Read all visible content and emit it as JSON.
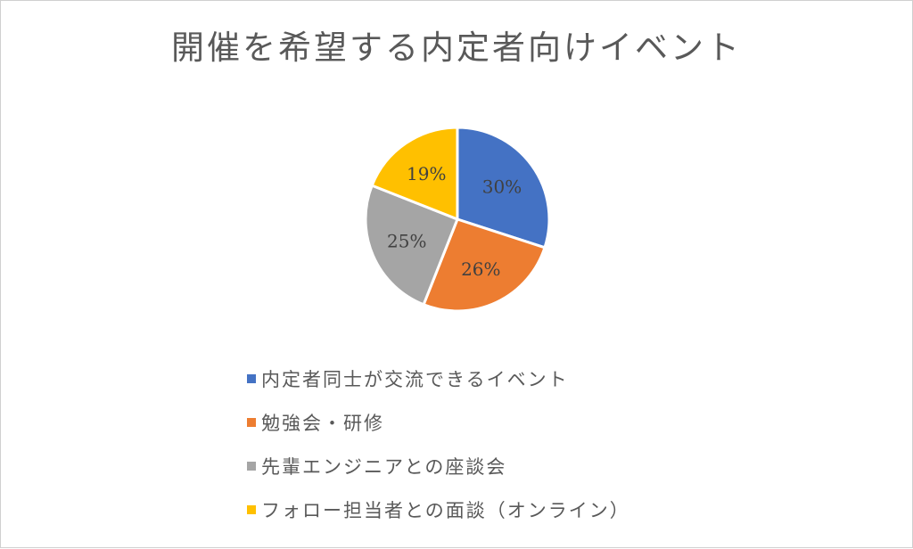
{
  "chart_data": {
    "type": "pie",
    "title": "開催を希望する内定者向けイベント",
    "categories": [
      "内定者同士が交流できるイベント",
      "勉強会・研修",
      "先輩エンジニアとの座談会",
      "フォロー担当者との面談（オンライン）"
    ],
    "values": [
      30,
      26,
      25,
      19
    ],
    "labels": [
      "30%",
      "26%",
      "25%",
      "19%"
    ],
    "colors": [
      "#4472C4",
      "#ED7D31",
      "#A5A5A5",
      "#FFC000"
    ],
    "legend_position": "bottom"
  }
}
